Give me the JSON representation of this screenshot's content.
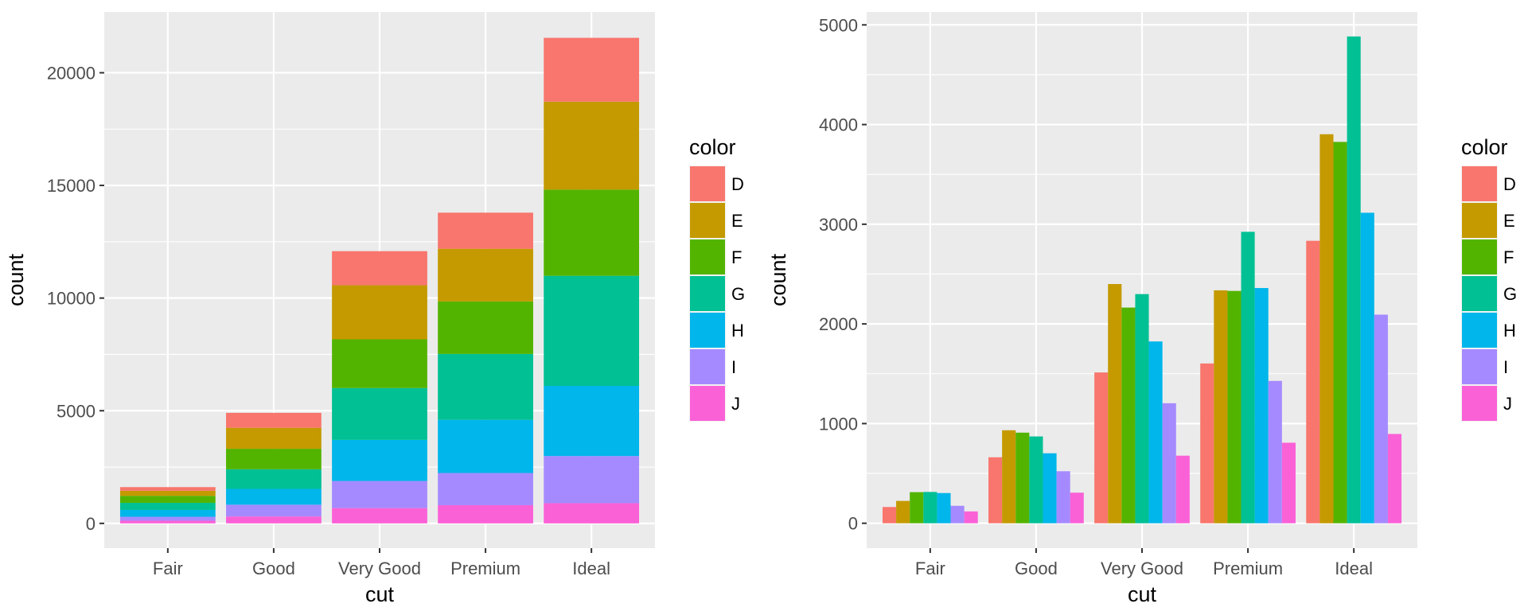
{
  "chart_data": [
    {
      "type": "bar",
      "stacking": "stacked",
      "xlabel": "cut",
      "ylabel": "count",
      "categories": [
        "Fair",
        "Good",
        "Very Good",
        "Premium",
        "Ideal"
      ],
      "ylim": [
        -1100,
        22700
      ],
      "yticks": [
        0,
        5000,
        10000,
        15000,
        20000
      ],
      "ytick_labels": [
        "0",
        "5000",
        "10000",
        "15000",
        "20000"
      ],
      "grid": true,
      "legend": {
        "title": "color",
        "position": "right"
      },
      "series": [
        {
          "name": "D",
          "color": "#F8766D",
          "values": [
            163,
            662,
            1513,
            1603,
            2834
          ]
        },
        {
          "name": "E",
          "color": "#C49A00",
          "values": [
            224,
            933,
            2400,
            2337,
            3903
          ]
        },
        {
          "name": "F",
          "color": "#53B400",
          "values": [
            312,
            909,
            2164,
            2331,
            3826
          ]
        },
        {
          "name": "G",
          "color": "#00C094",
          "values": [
            314,
            871,
            2299,
            2924,
            4884
          ]
        },
        {
          "name": "H",
          "color": "#00B6EB",
          "values": [
            303,
            702,
            1824,
            2360,
            3115
          ]
        },
        {
          "name": "I",
          "color": "#A58AFF",
          "values": [
            175,
            522,
            1204,
            1428,
            2093
          ]
        },
        {
          "name": "J",
          "color": "#FB61D7",
          "values": [
            119,
            307,
            678,
            808,
            896
          ]
        }
      ]
    },
    {
      "type": "bar",
      "stacking": "dodge",
      "xlabel": "cut",
      "ylabel": "count",
      "categories": [
        "Fair",
        "Good",
        "Very Good",
        "Premium",
        "Ideal"
      ],
      "ylim": [
        -250,
        5130
      ],
      "yticks": [
        0,
        1000,
        2000,
        3000,
        4000,
        5000
      ],
      "ytick_labels": [
        "0",
        "1000",
        "2000",
        "3000",
        "4000",
        "5000"
      ],
      "grid": true,
      "legend": {
        "title": "color",
        "position": "right"
      },
      "series": [
        {
          "name": "D",
          "color": "#F8766D",
          "values": [
            163,
            662,
            1513,
            1603,
            2834
          ]
        },
        {
          "name": "E",
          "color": "#C49A00",
          "values": [
            224,
            933,
            2400,
            2337,
            3903
          ]
        },
        {
          "name": "F",
          "color": "#53B400",
          "values": [
            312,
            909,
            2164,
            2331,
            3826
          ]
        },
        {
          "name": "G",
          "color": "#00C094",
          "values": [
            314,
            871,
            2299,
            2924,
            4884
          ]
        },
        {
          "name": "H",
          "color": "#00B6EB",
          "values": [
            303,
            702,
            1824,
            2360,
            3115
          ]
        },
        {
          "name": "I",
          "color": "#A58AFF",
          "values": [
            175,
            522,
            1204,
            1428,
            2093
          ]
        },
        {
          "name": "J",
          "color": "#FB61D7",
          "values": [
            119,
            307,
            678,
            808,
            896
          ]
        }
      ]
    }
  ]
}
